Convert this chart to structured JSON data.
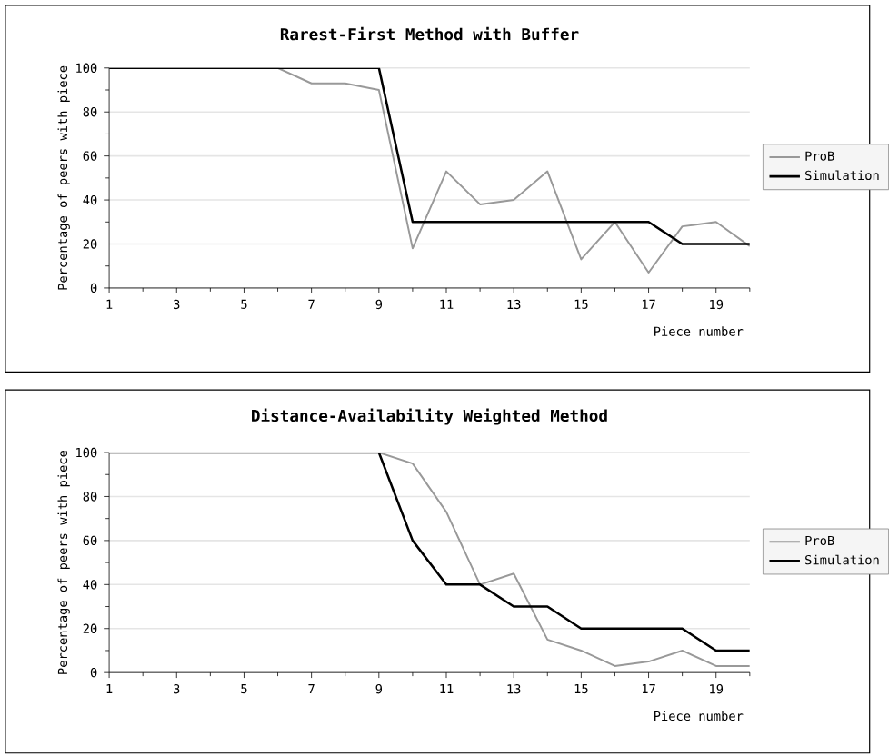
{
  "chart_data": [
    {
      "type": "line",
      "title": "Rarest-First Method with Buffer",
      "xlabel": "Piece number",
      "ylabel": "Percentage of peers with piece",
      "x": [
        1,
        2,
        3,
        4,
        5,
        6,
        7,
        8,
        9,
        10,
        11,
        12,
        13,
        14,
        15,
        16,
        17,
        18,
        19,
        20
      ],
      "series": [
        {
          "name": "ProB",
          "color": "#999999",
          "values": [
            100,
            100,
            100,
            100,
            100,
            100,
            93,
            93,
            90,
            18,
            53,
            38,
            40,
            53,
            13,
            30,
            7,
            28,
            30,
            19
          ]
        },
        {
          "name": "Simulation",
          "color": "#000000",
          "values": [
            100,
            100,
            100,
            100,
            100,
            100,
            100,
            100,
            100,
            30,
            30,
            30,
            30,
            30,
            30,
            30,
            30,
            20,
            20,
            20
          ]
        }
      ],
      "xlim": [
        1,
        20
      ],
      "xticks": [
        1,
        {
          "value": 2,
          "label": null
        },
        3,
        {
          "value": 4,
          "label": null
        },
        5,
        {
          "value": 6,
          "label": null
        },
        7,
        {
          "value": 8,
          "label": null
        },
        9,
        {
          "value": 10,
          "label": null
        },
        11,
        {
          "value": 12,
          "label": null
        },
        13,
        {
          "value": 14,
          "label": null
        },
        15,
        {
          "value": 16,
          "label": null
        },
        17,
        {
          "value": 18,
          "label": null
        },
        19,
        {
          "value": 20,
          "label": null
        }
      ],
      "ylim": [
        0,
        100
      ],
      "yticks": [
        0,
        {
          "value": 10,
          "label": null
        },
        20,
        {
          "value": 30,
          "label": null
        },
        40,
        {
          "value": 50,
          "label": null
        },
        60,
        {
          "value": 70,
          "label": null
        },
        80,
        {
          "value": 90,
          "label": null
        },
        100
      ],
      "grid": "y",
      "legend": "right",
      "marker": "none",
      "line_style": "solid"
    },
    {
      "type": "line",
      "title": "Distance-Availability Weighted Method",
      "xlabel": "Piece number",
      "ylabel": "Percentage of peers with piece",
      "x": [
        1,
        2,
        3,
        4,
        5,
        6,
        7,
        8,
        9,
        10,
        11,
        12,
        13,
        14,
        15,
        16,
        17,
        18,
        19,
        20
      ],
      "series": [
        {
          "name": "ProB",
          "color": "#999999",
          "values": [
            100,
            100,
            100,
            100,
            100,
            100,
            100,
            100,
            100,
            95,
            73,
            40,
            45,
            15,
            10,
            3,
            5,
            10,
            3,
            3
          ]
        },
        {
          "name": "Simulation",
          "color": "#000000",
          "values": [
            100,
            100,
            100,
            100,
            100,
            100,
            100,
            100,
            100,
            60,
            40,
            40,
            30,
            30,
            20,
            20,
            20,
            20,
            10,
            10
          ]
        }
      ],
      "xlim": [
        1,
        20
      ],
      "xticks": [
        1,
        {
          "value": 2,
          "label": null
        },
        3,
        {
          "value": 4,
          "label": null
        },
        5,
        {
          "value": 6,
          "label": null
        },
        7,
        {
          "value": 8,
          "label": null
        },
        9,
        {
          "value": 10,
          "label": null
        },
        11,
        {
          "value": 12,
          "label": null
        },
        13,
        {
          "value": 14,
          "label": null
        },
        15,
        {
          "value": 16,
          "label": null
        },
        17,
        {
          "value": 18,
          "label": null
        },
        19,
        {
          "value": 20,
          "label": null
        }
      ],
      "ylim": [
        0,
        100
      ],
      "yticks": [
        0,
        {
          "value": 10,
          "label": null
        },
        20,
        {
          "value": 30,
          "label": null
        },
        40,
        {
          "value": 50,
          "label": null
        },
        60,
        {
          "value": 70,
          "label": null
        },
        80,
        {
          "value": 90,
          "label": null
        },
        100
      ],
      "grid": "y",
      "legend": "right",
      "marker": "none",
      "line_style": "solid"
    }
  ]
}
